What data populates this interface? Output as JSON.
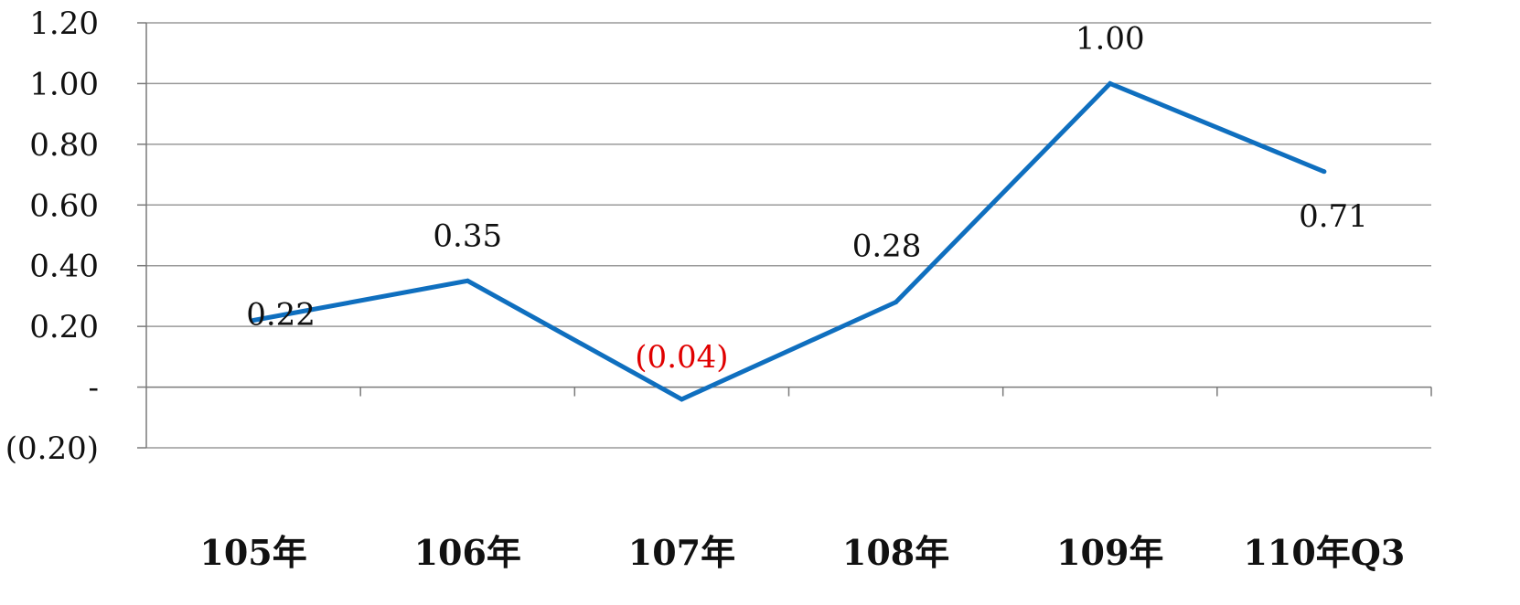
{
  "chart_data": {
    "type": "line",
    "title": "",
    "xlabel": "",
    "ylabel": "",
    "categories": [
      "105年",
      "106年",
      "107年",
      "108年",
      "109年",
      "110年Q3"
    ],
    "series": [
      {
        "values": [
          0.22,
          0.35,
          -0.04,
          0.28,
          1.0,
          0.71
        ],
        "labels": [
          "0.22",
          "0.35",
          "(0.04)",
          "0.28",
          "1.00",
          "0.71"
        ],
        "color": "#0f6fbf"
      }
    ],
    "ylim": [
      -0.2,
      1.2
    ],
    "yticks": [
      {
        "value": 1.2,
        "label": "1.20"
      },
      {
        "value": 1.0,
        "label": "1.00"
      },
      {
        "value": 0.8,
        "label": "0.80"
      },
      {
        "value": 0.6,
        "label": "0.60"
      },
      {
        "value": 0.4,
        "label": "0.40"
      },
      {
        "value": 0.2,
        "label": "0.20"
      },
      {
        "value": 0.0,
        "label": "-"
      },
      {
        "value": -0.2,
        "label": "(0.20)"
      }
    ],
    "grid": true,
    "legend": "none",
    "negative_label_color": "#e00000"
  }
}
